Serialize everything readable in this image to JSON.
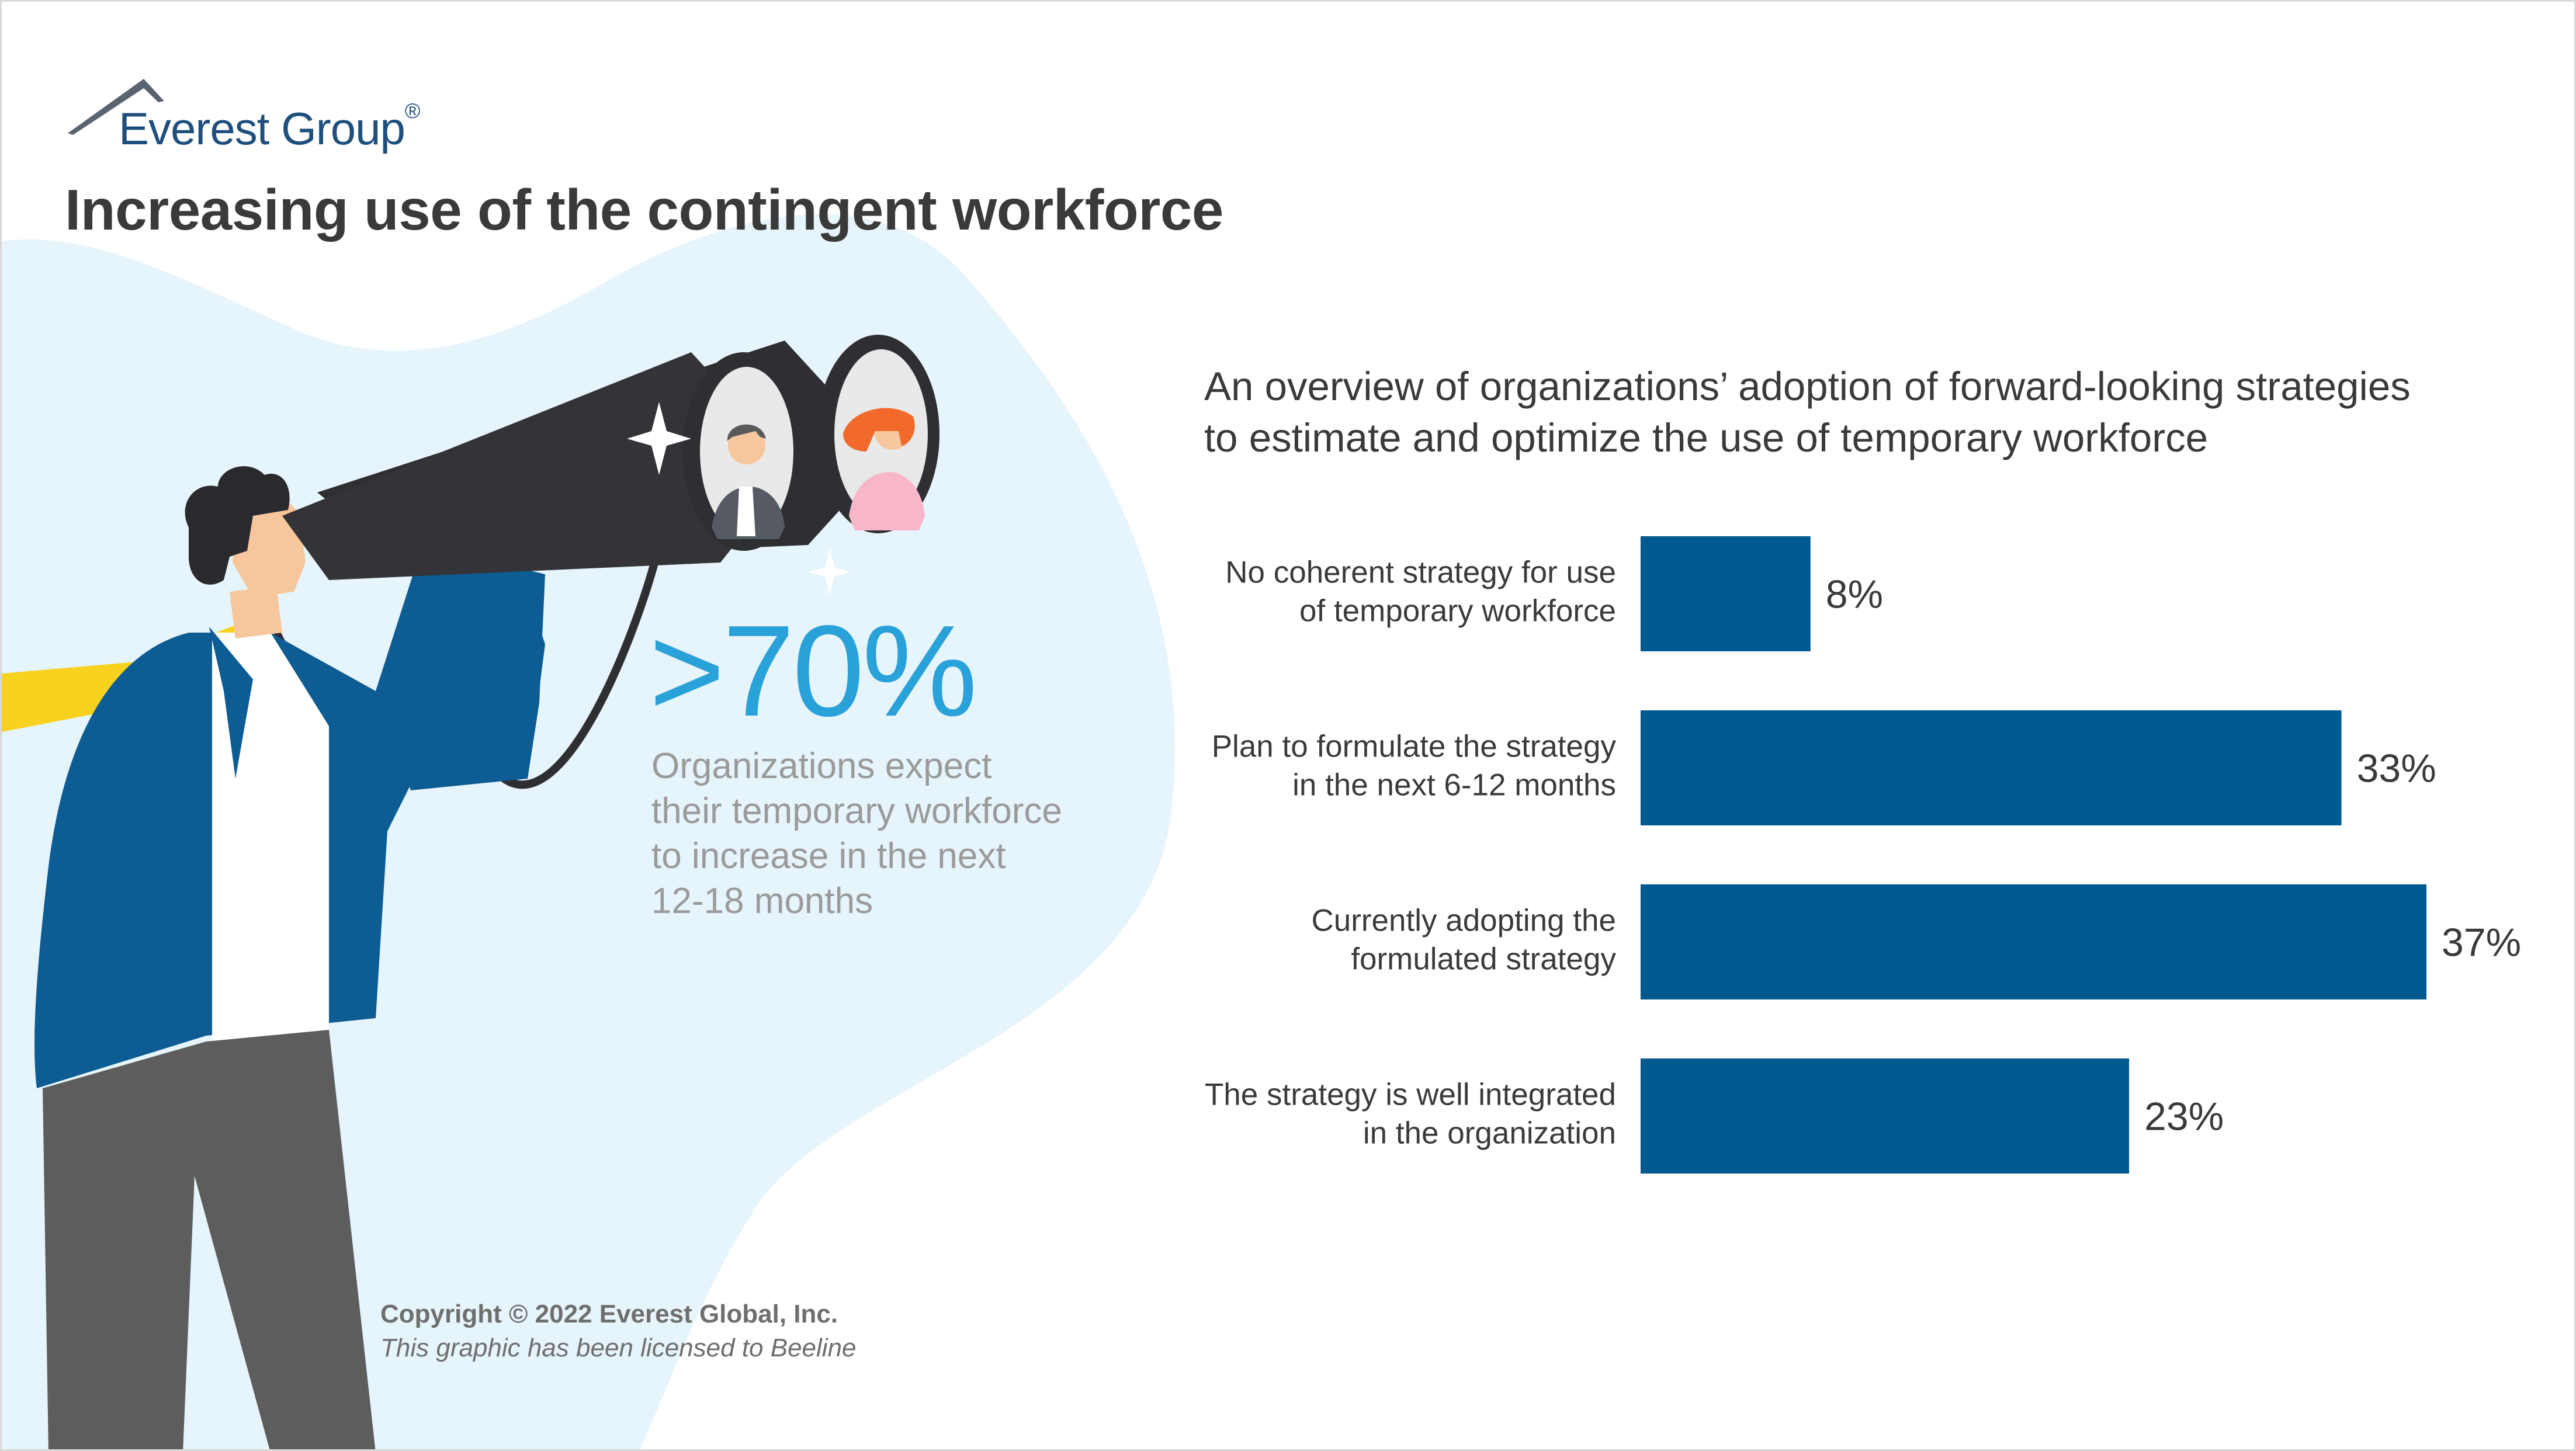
{
  "brand": {
    "name": "Everest Group",
    "registered_mark": "®",
    "color": "#1f4f7d"
  },
  "page": {
    "title": "Increasing use of the contingent workforce"
  },
  "highlight": {
    "stat": ">70%",
    "description_lines": [
      "Organizations expect",
      "their temporary workforce",
      "to increase in the next",
      "12-18 months"
    ],
    "color": "#29a1d9"
  },
  "chart_data": {
    "type": "bar",
    "orientation": "horizontal",
    "subtitle_lines": [
      "An overview of organizations’ adoption of forward-looking strategies",
      "to estimate and optimize the use of temporary workforce"
    ],
    "categories": [
      [
        "No coherent strategy for use",
        "of temporary workforce"
      ],
      [
        "Plan to formulate the strategy",
        "in the next 6-12 months"
      ],
      [
        "Currently adopting the",
        "formulated strategy"
      ],
      [
        "The strategy is well integrated",
        "in the organization"
      ]
    ],
    "values": [
      8,
      33,
      37,
      23
    ],
    "value_labels": [
      "8%",
      "33%",
      "37%",
      "23%"
    ],
    "unit": "%",
    "xlim": [
      0,
      37
    ],
    "bar_color": "#005a8f",
    "grid": false,
    "legend": "none"
  },
  "footer": {
    "copyright": "Copyright © 2022 Everest Global, Inc.",
    "license": "This graphic has been licensed to Beeline"
  },
  "illustration": {
    "colors": {
      "blob": "#e6f4fb",
      "jacket": "#0d5c93",
      "tie": "#f7d21e",
      "pants": "#5d5d5d",
      "binoculars": "#2e2e33",
      "skin": "#f6c79d",
      "hair": "#2a2a2e"
    },
    "icons": [
      "man-with-binoculars-icon",
      "sparkle-icon",
      "man-avatar-icon",
      "woman-avatar-icon"
    ]
  }
}
